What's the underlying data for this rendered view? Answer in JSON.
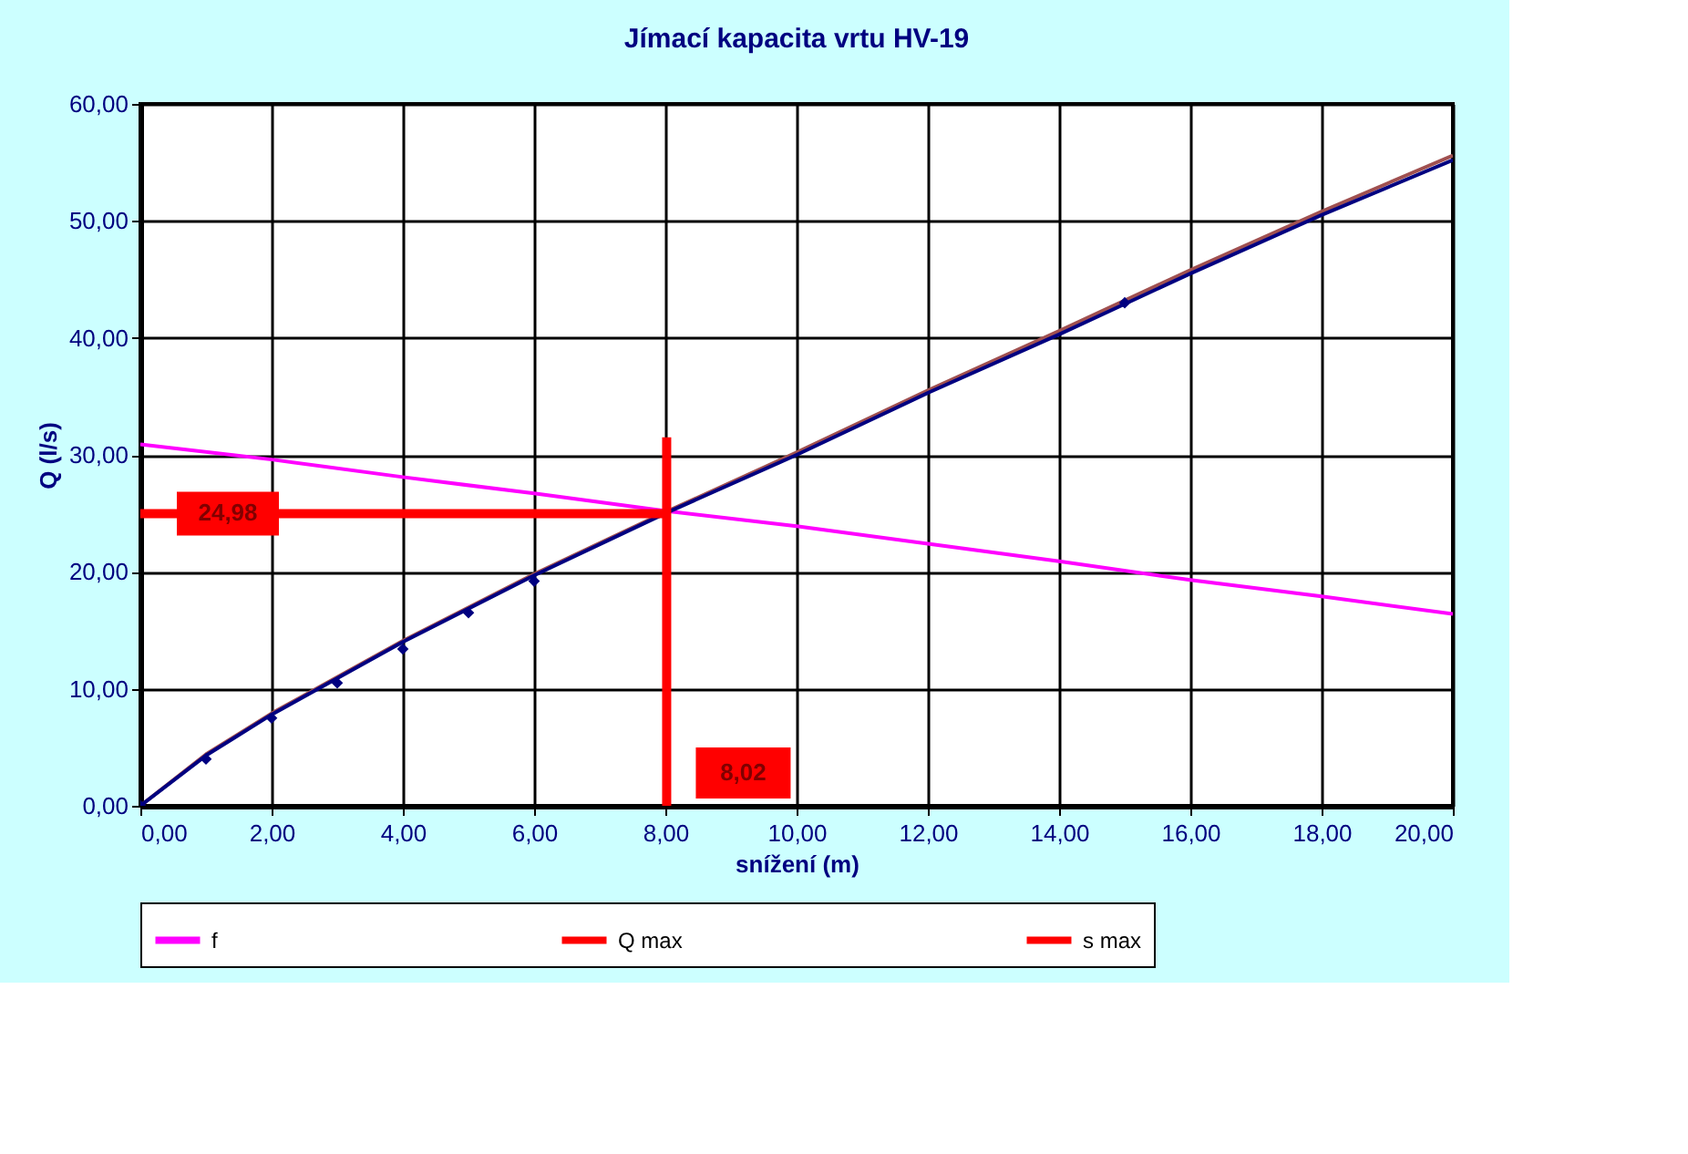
{
  "chart_data": {
    "type": "line",
    "title": "Jímací kapacita vrtu HV-19",
    "xlabel": "snížení (m)",
    "ylabel": "Q (l/s)",
    "xlim": [
      0,
      20
    ],
    "ylim": [
      0,
      60
    ],
    "xticks": [
      {
        "value": 0,
        "label": "0,00"
      },
      {
        "value": 2,
        "label": "2,00"
      },
      {
        "value": 4,
        "label": "4,00"
      },
      {
        "value": 6,
        "label": "6,00"
      },
      {
        "value": 8,
        "label": "8,00"
      },
      {
        "value": 10,
        "label": "10,00"
      },
      {
        "value": 12,
        "label": "12,00"
      },
      {
        "value": 14,
        "label": "14,00"
      },
      {
        "value": 16,
        "label": "16,00"
      },
      {
        "value": 18,
        "label": "18,00"
      },
      {
        "value": 20,
        "label": "20,00"
      }
    ],
    "yticks": [
      {
        "value": 0,
        "label": "0,00"
      },
      {
        "value": 10,
        "label": "10,00"
      },
      {
        "value": 20,
        "label": "20,00"
      },
      {
        "value": 30,
        "label": "30,00"
      },
      {
        "value": 40,
        "label": "40,00"
      },
      {
        "value": 50,
        "label": "50,00"
      },
      {
        "value": 60,
        "label": "60,00"
      }
    ],
    "grid": true,
    "legend": "bottom",
    "series": [
      {
        "name": "f",
        "color": "#ff00ff",
        "x": [
          0,
          2,
          4,
          6,
          8,
          10,
          12,
          14,
          16,
          18,
          20
        ],
        "values": [
          30.9,
          29.6,
          28.1,
          26.7,
          25.2,
          23.9,
          22.4,
          20.9,
          19.3,
          17.9,
          16.4
        ]
      },
      {
        "color": "#a05050",
        "x": [
          0,
          1,
          2,
          4,
          6,
          8,
          10,
          12,
          14,
          16,
          18,
          20
        ],
        "values": [
          0,
          4.4,
          7.9,
          14.1,
          19.8,
          25.1,
          30.2,
          35.5,
          40.6,
          45.8,
          50.8,
          55.6
        ]
      },
      {
        "color": "#000080",
        "x": [
          0,
          1,
          2,
          4,
          6,
          8,
          10,
          12,
          14,
          16,
          18,
          20
        ],
        "values": [
          0,
          4.3,
          7.8,
          14.0,
          19.7,
          25.0,
          30.0,
          35.3,
          40.3,
          45.5,
          50.5,
          55.2
        ]
      },
      {
        "color": "#000080",
        "type": "scatter",
        "marker": "diamond",
        "x": [
          0,
          1,
          2,
          3,
          4,
          5,
          6,
          15
        ],
        "values": [
          0,
          4.0,
          7.5,
          10.5,
          13.4,
          16.5,
          19.2,
          43.0
        ]
      },
      {
        "name": "Q max",
        "color": "#ff0000",
        "x": [
          0,
          8.02
        ],
        "values": [
          24.98,
          24.98
        ]
      },
      {
        "name": "s max",
        "color": "#ff0000",
        "x": [
          8.02,
          8.02
        ],
        "values": [
          0,
          31.5
        ]
      }
    ],
    "annotations": [
      {
        "text": "24,98",
        "x": 0,
        "y": 24.98
      },
      {
        "text": "8,02",
        "x": 8.02,
        "y": 0
      }
    ]
  }
}
